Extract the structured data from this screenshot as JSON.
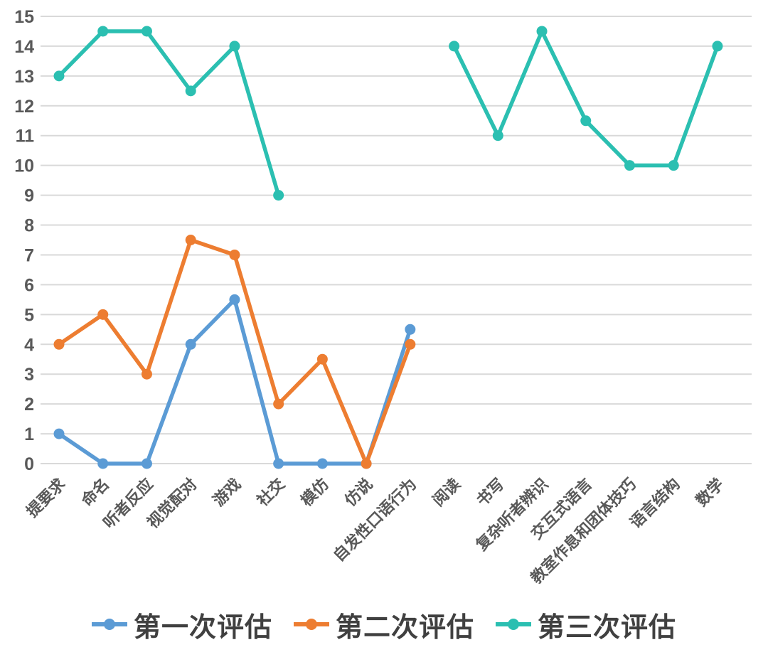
{
  "chart_data": {
    "type": "line",
    "title": "",
    "xlabel": "",
    "ylabel": "",
    "ylim": [
      0,
      15
    ],
    "ystep": 1,
    "grid": "horizontal",
    "legend_position": "bottom",
    "categories": [
      "提要求",
      "命名",
      "听者反应",
      "视觉配对",
      "游戏",
      "社交",
      "模仿",
      "仿说",
      "自发性口语行为",
      "阅读",
      "书写",
      "复杂听者辨识",
      "交互式语言",
      "教室作息和团体技巧",
      "语言结构",
      "数学"
    ],
    "series": [
      {
        "name": "第一次评估",
        "color": "#5B9BD5",
        "values": [
          1,
          0,
          0,
          4,
          5.5,
          0,
          0,
          0,
          4.5,
          null,
          null,
          null,
          null,
          null,
          null,
          null
        ]
      },
      {
        "name": "第二次评估",
        "color": "#ED7D31",
        "values": [
          4,
          5,
          3,
          7.5,
          7,
          2,
          3.5,
          0,
          4,
          null,
          null,
          null,
          null,
          null,
          null,
          null
        ]
      },
      {
        "name": "第三次评估",
        "color": "#2BBFB1",
        "values": [
          13,
          14.5,
          14.5,
          12.5,
          14,
          9,
          null,
          null,
          null,
          14,
          11,
          14.5,
          11.5,
          10,
          10,
          14
        ]
      }
    ],
    "colors": {
      "grid": "#D9D9D9",
      "axis_text": "#595959",
      "legend_text": "#404040",
      "background": "#FFFFFF"
    }
  }
}
